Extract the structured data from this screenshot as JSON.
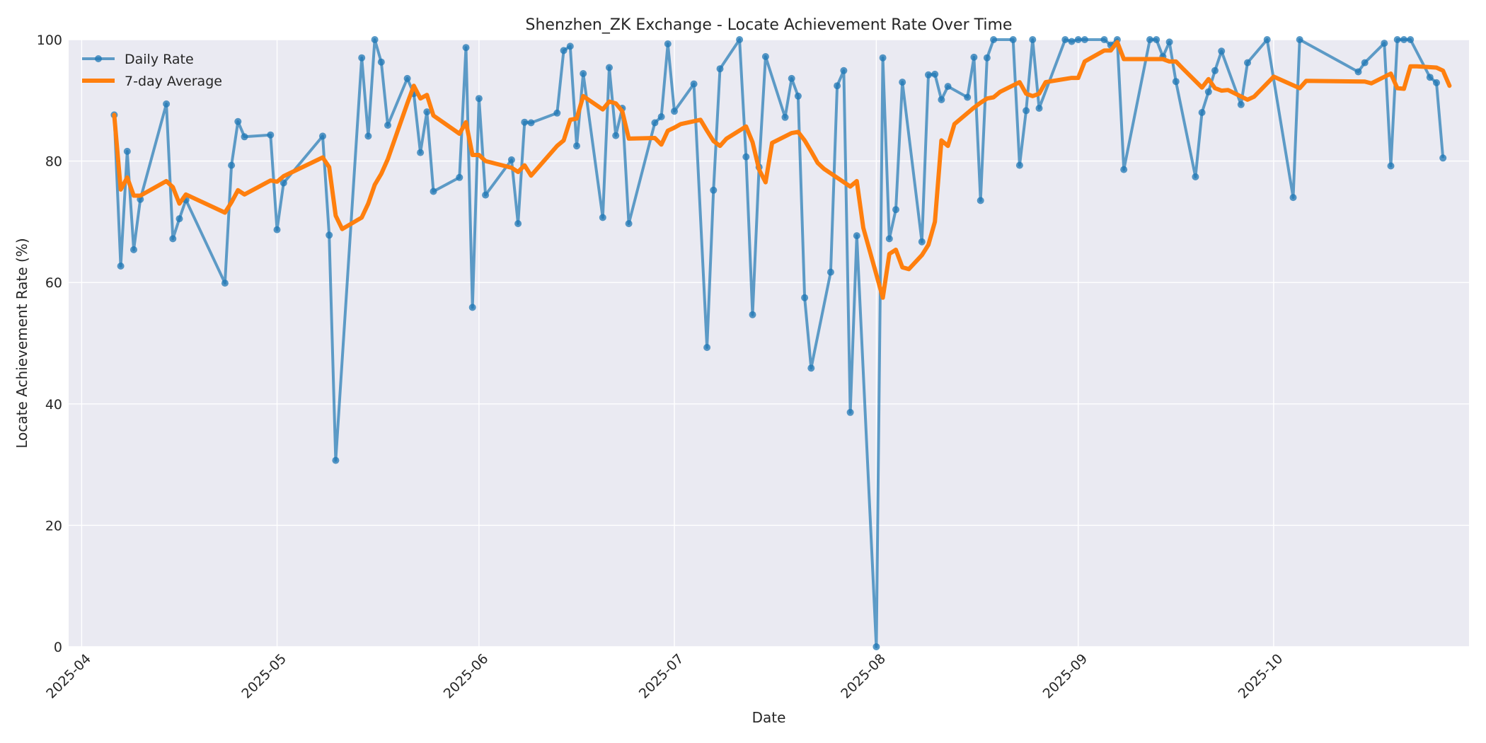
{
  "chart_data": {
    "type": "line",
    "title": "Shenzhen_ZK Exchange - Locate Achievement Rate Over Time",
    "xlabel": "Date",
    "ylabel": "Locate Achievement Rate (%)",
    "xlim": [
      "2025-03-30",
      "2025-10-31"
    ],
    "ylim": [
      0,
      100
    ],
    "x_ticks": [
      {
        "date": "2025-04-01",
        "label": "2025-04"
      },
      {
        "date": "2025-05-01",
        "label": "2025-05"
      },
      {
        "date": "2025-06-01",
        "label": "2025-06"
      },
      {
        "date": "2025-07-01",
        "label": "2025-07"
      },
      {
        "date": "2025-08-01",
        "label": "2025-08"
      },
      {
        "date": "2025-09-01",
        "label": "2025-09"
      },
      {
        "date": "2025-10-01",
        "label": "2025-10"
      }
    ],
    "y_ticks": [
      0,
      20,
      40,
      60,
      80,
      100
    ],
    "grid": true,
    "legend_position": "top-left",
    "series": [
      {
        "name": "Daily Rate",
        "color": "#1f77b4",
        "marker": "circle",
        "points": [
          [
            "2025-04-06",
            87.6
          ],
          [
            "2025-04-07",
            62.7
          ],
          [
            "2025-04-08",
            81.6
          ],
          [
            "2025-04-09",
            65.4
          ],
          [
            "2025-04-10",
            73.7
          ],
          [
            "2025-04-14",
            89.4
          ],
          [
            "2025-04-15",
            67.2
          ],
          [
            "2025-04-16",
            70.5
          ],
          [
            "2025-04-17",
            73.6
          ],
          [
            "2025-04-23",
            59.9
          ],
          [
            "2025-04-24",
            79.3
          ],
          [
            "2025-04-25",
            86.5
          ],
          [
            "2025-04-26",
            84.0
          ],
          [
            "2025-04-30",
            84.3
          ],
          [
            "2025-05-01",
            68.7
          ],
          [
            "2025-05-02",
            76.4
          ],
          [
            "2025-05-08",
            84.1
          ],
          [
            "2025-05-09",
            67.8
          ],
          [
            "2025-05-10",
            30.7
          ],
          [
            "2025-05-14",
            97.0
          ],
          [
            "2025-05-15",
            84.1
          ],
          [
            "2025-05-16",
            100.0
          ],
          [
            "2025-05-17",
            96.3
          ],
          [
            "2025-05-18",
            85.9
          ],
          [
            "2025-05-21",
            93.6
          ],
          [
            "2025-05-22",
            91.1
          ],
          [
            "2025-05-23",
            81.4
          ],
          [
            "2025-05-24",
            88.1
          ],
          [
            "2025-05-25",
            75.0
          ],
          [
            "2025-05-29",
            77.3
          ],
          [
            "2025-05-30",
            98.7
          ],
          [
            "2025-05-31",
            55.9
          ],
          [
            "2025-06-01",
            90.3
          ],
          [
            "2025-06-02",
            74.4
          ],
          [
            "2025-06-06",
            80.2
          ],
          [
            "2025-06-07",
            69.7
          ],
          [
            "2025-06-08",
            86.4
          ],
          [
            "2025-06-09",
            86.3
          ],
          [
            "2025-06-13",
            87.9
          ],
          [
            "2025-06-14",
            98.2
          ],
          [
            "2025-06-15",
            98.9
          ],
          [
            "2025-06-16",
            82.5
          ],
          [
            "2025-06-17",
            94.4
          ],
          [
            "2025-06-20",
            70.7
          ],
          [
            "2025-06-21",
            95.4
          ],
          [
            "2025-06-22",
            84.2
          ],
          [
            "2025-06-23",
            88.7
          ],
          [
            "2025-06-24",
            69.7
          ],
          [
            "2025-06-28",
            86.3
          ],
          [
            "2025-06-29",
            87.3
          ],
          [
            "2025-06-30",
            99.3
          ],
          [
            "2025-07-01",
            88.2
          ],
          [
            "2025-07-04",
            92.7
          ],
          [
            "2025-07-06",
            49.3
          ],
          [
            "2025-07-07",
            75.2
          ],
          [
            "2025-07-08",
            95.2
          ],
          [
            "2025-07-11",
            100.0
          ],
          [
            "2025-07-12",
            80.7
          ],
          [
            "2025-07-13",
            54.7
          ],
          [
            "2025-07-14",
            79.0
          ],
          [
            "2025-07-15",
            97.2
          ],
          [
            "2025-07-18",
            87.2
          ],
          [
            "2025-07-19",
            93.6
          ],
          [
            "2025-07-20",
            90.7
          ],
          [
            "2025-07-21",
            57.5
          ],
          [
            "2025-07-22",
            45.9
          ],
          [
            "2025-07-25",
            61.7
          ],
          [
            "2025-07-26",
            92.4
          ],
          [
            "2025-07-27",
            94.9
          ],
          [
            "2025-07-28",
            38.6
          ],
          [
            "2025-07-29",
            67.7
          ],
          [
            "2025-08-01",
            0.0
          ],
          [
            "2025-08-02",
            97.0
          ],
          [
            "2025-08-03",
            67.2
          ],
          [
            "2025-08-04",
            72.0
          ],
          [
            "2025-08-05",
            93.0
          ],
          [
            "2025-08-08",
            66.7
          ],
          [
            "2025-08-09",
            94.2
          ],
          [
            "2025-08-10",
            94.3
          ],
          [
            "2025-08-11",
            90.1
          ],
          [
            "2025-08-12",
            92.3
          ],
          [
            "2025-08-15",
            90.5
          ],
          [
            "2025-08-16",
            97.1
          ],
          [
            "2025-08-17",
            73.5
          ],
          [
            "2025-08-18",
            97.0
          ],
          [
            "2025-08-19",
            100.0
          ],
          [
            "2025-08-22",
            100.0
          ],
          [
            "2025-08-23",
            79.3
          ],
          [
            "2025-08-24",
            88.3
          ],
          [
            "2025-08-25",
            100.0
          ],
          [
            "2025-08-26",
            88.7
          ],
          [
            "2025-08-30",
            100.0
          ],
          [
            "2025-08-31",
            99.7
          ],
          [
            "2025-09-01",
            100.0
          ],
          [
            "2025-09-02",
            100.0
          ],
          [
            "2025-09-05",
            100.0
          ],
          [
            "2025-09-06",
            99.1
          ],
          [
            "2025-09-07",
            100.0
          ],
          [
            "2025-09-08",
            78.6
          ],
          [
            "2025-09-12",
            100.0
          ],
          [
            "2025-09-13",
            100.0
          ],
          [
            "2025-09-14",
            97.2
          ],
          [
            "2025-09-15",
            99.6
          ],
          [
            "2025-09-16",
            93.1
          ],
          [
            "2025-09-19",
            77.4
          ],
          [
            "2025-09-20",
            88.0
          ],
          [
            "2025-09-21",
            91.4
          ],
          [
            "2025-09-22",
            94.9
          ],
          [
            "2025-09-23",
            98.1
          ],
          [
            "2025-09-26",
            89.3
          ],
          [
            "2025-09-27",
            96.2
          ],
          [
            "2025-09-30",
            100.0
          ],
          [
            "2025-10-04",
            74.0
          ],
          [
            "2025-10-05",
            100.0
          ],
          [
            "2025-10-14",
            94.7
          ],
          [
            "2025-10-15",
            96.2
          ],
          [
            "2025-10-18",
            99.4
          ],
          [
            "2025-10-19",
            79.2
          ],
          [
            "2025-10-20",
            100.0
          ],
          [
            "2025-10-21",
            100.0
          ],
          [
            "2025-10-22",
            100.0
          ],
          [
            "2025-10-25",
            93.8
          ],
          [
            "2025-10-26",
            92.9
          ],
          [
            "2025-10-27",
            80.5
          ]
        ]
      },
      {
        "name": "7-day Average",
        "color": "#ff7f0e",
        "marker": "none",
        "points": [
          [
            "2025-04-06",
            87.6
          ],
          [
            "2025-04-07",
            75.3
          ],
          [
            "2025-04-08",
            77.3
          ],
          [
            "2025-04-09",
            74.3
          ],
          [
            "2025-04-10",
            74.3
          ],
          [
            "2025-04-14",
            76.7
          ],
          [
            "2025-04-15",
            75.7
          ],
          [
            "2025-04-16",
            73.0
          ],
          [
            "2025-04-17",
            74.5
          ],
          [
            "2025-04-23",
            71.5
          ],
          [
            "2025-04-24",
            73.2
          ],
          [
            "2025-04-25",
            75.2
          ],
          [
            "2025-04-26",
            74.5
          ],
          [
            "2025-04-30",
            76.8
          ],
          [
            "2025-05-01",
            76.6
          ],
          [
            "2025-05-02",
            77.5
          ],
          [
            "2025-05-08",
            80.6
          ],
          [
            "2025-05-09",
            79.0
          ],
          [
            "2025-05-10",
            71.0
          ],
          [
            "2025-05-11",
            68.8
          ],
          [
            "2025-05-14",
            70.7
          ],
          [
            "2025-05-15",
            73.0
          ],
          [
            "2025-05-16",
            76.1
          ],
          [
            "2025-05-17",
            77.9
          ],
          [
            "2025-05-18",
            80.3
          ],
          [
            "2025-05-21",
            89.5
          ],
          [
            "2025-05-22",
            92.4
          ],
          [
            "2025-05-23",
            90.3
          ],
          [
            "2025-05-24",
            90.9
          ],
          [
            "2025-05-25",
            87.5
          ],
          [
            "2025-05-29",
            84.5
          ],
          [
            "2025-05-30",
            86.4
          ],
          [
            "2025-05-31",
            81.0
          ],
          [
            "2025-06-01",
            81.0
          ],
          [
            "2025-06-02",
            80.0
          ],
          [
            "2025-06-06",
            78.9
          ],
          [
            "2025-06-07",
            78.2
          ],
          [
            "2025-06-08",
            79.3
          ],
          [
            "2025-06-09",
            77.6
          ],
          [
            "2025-06-13",
            82.5
          ],
          [
            "2025-06-14",
            83.4
          ],
          [
            "2025-06-15",
            86.8
          ],
          [
            "2025-06-16",
            87.0
          ],
          [
            "2025-06-17",
            90.7
          ],
          [
            "2025-06-20",
            88.5
          ],
          [
            "2025-06-21",
            89.8
          ],
          [
            "2025-06-22",
            89.5
          ],
          [
            "2025-06-23",
            88.2
          ],
          [
            "2025-06-24",
            83.7
          ],
          [
            "2025-06-28",
            83.8
          ],
          [
            "2025-06-29",
            82.7
          ],
          [
            "2025-06-30",
            85.0
          ],
          [
            "2025-07-01",
            85.5
          ],
          [
            "2025-07-02",
            86.1
          ],
          [
            "2025-07-05",
            86.8
          ],
          [
            "2025-07-06",
            85.0
          ],
          [
            "2025-07-07",
            83.3
          ],
          [
            "2025-07-08",
            82.5
          ],
          [
            "2025-07-09",
            83.7
          ],
          [
            "2025-07-12",
            85.7
          ],
          [
            "2025-07-13",
            83.1
          ],
          [
            "2025-07-14",
            78.6
          ],
          [
            "2025-07-15",
            76.5
          ],
          [
            "2025-07-16",
            83.0
          ],
          [
            "2025-07-19",
            84.6
          ],
          [
            "2025-07-20",
            84.8
          ],
          [
            "2025-07-21",
            83.4
          ],
          [
            "2025-07-22",
            81.6
          ],
          [
            "2025-07-23",
            79.7
          ],
          [
            "2025-07-24",
            78.7
          ],
          [
            "2025-07-28",
            75.8
          ],
          [
            "2025-07-29",
            76.7
          ],
          [
            "2025-07-30",
            69.0
          ],
          [
            "2025-08-02",
            57.5
          ],
          [
            "2025-08-03",
            64.7
          ],
          [
            "2025-08-04",
            65.4
          ],
          [
            "2025-08-05",
            62.5
          ],
          [
            "2025-08-06",
            62.2
          ],
          [
            "2025-08-08",
            64.5
          ],
          [
            "2025-08-09",
            66.2
          ],
          [
            "2025-08-10",
            70.0
          ],
          [
            "2025-08-11",
            83.4
          ],
          [
            "2025-08-12",
            82.5
          ],
          [
            "2025-08-13",
            86.1
          ],
          [
            "2025-08-16",
            88.8
          ],
          [
            "2025-08-17",
            89.6
          ],
          [
            "2025-08-18",
            90.3
          ],
          [
            "2025-08-19",
            90.5
          ],
          [
            "2025-08-20",
            91.4
          ],
          [
            "2025-08-23",
            93.0
          ],
          [
            "2025-08-24",
            91.1
          ],
          [
            "2025-08-25",
            90.7
          ],
          [
            "2025-08-26",
            91.1
          ],
          [
            "2025-08-27",
            93.0
          ],
          [
            "2025-08-31",
            93.7
          ],
          [
            "2025-09-01",
            93.7
          ],
          [
            "2025-09-02",
            96.4
          ],
          [
            "2025-09-05",
            98.2
          ],
          [
            "2025-09-06",
            98.2
          ],
          [
            "2025-09-07",
            99.6
          ],
          [
            "2025-09-08",
            96.8
          ],
          [
            "2025-09-13",
            96.8
          ],
          [
            "2025-09-14",
            96.8
          ],
          [
            "2025-09-15",
            96.4
          ],
          [
            "2025-09-16",
            96.4
          ],
          [
            "2025-09-17",
            95.3
          ],
          [
            "2025-09-20",
            92.1
          ],
          [
            "2025-09-21",
            93.5
          ],
          [
            "2025-09-22",
            92.0
          ],
          [
            "2025-09-23",
            91.6
          ],
          [
            "2025-09-24",
            91.7
          ],
          [
            "2025-09-27",
            90.1
          ],
          [
            "2025-09-28",
            90.6
          ],
          [
            "2025-10-01",
            93.9
          ],
          [
            "2025-10-05",
            92.0
          ],
          [
            "2025-10-06",
            93.2
          ],
          [
            "2025-10-15",
            93.1
          ],
          [
            "2025-10-16",
            92.8
          ],
          [
            "2025-10-19",
            94.4
          ],
          [
            "2025-10-20",
            92.0
          ],
          [
            "2025-10-21",
            91.9
          ],
          [
            "2025-10-22",
            95.6
          ],
          [
            "2025-10-23",
            95.6
          ],
          [
            "2025-10-26",
            95.4
          ],
          [
            "2025-10-27",
            94.9
          ],
          [
            "2025-10-28",
            92.4
          ]
        ]
      }
    ]
  }
}
